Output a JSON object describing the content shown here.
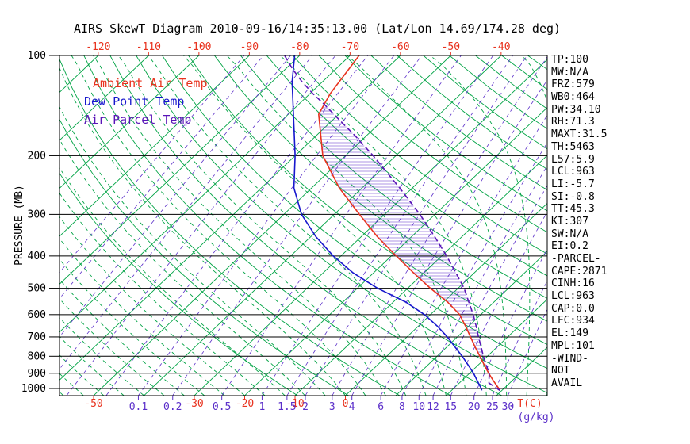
{
  "colors": {
    "red": "#e8321e",
    "green": "#00a344",
    "blue": "#1717cd",
    "violet": "#5b2fc9",
    "parcel": "#5a16b8",
    "black": "#000000"
  },
  "legend": {
    "items": [
      {
        "label": "Ambient Air Temp",
        "color_key": "red"
      },
      {
        "label": "Dew Point Temp",
        "color_key": "blue"
      },
      {
        "label": "Air Parcel Temp",
        "color_key": "parcel"
      }
    ]
  },
  "stats_panel": {
    "lines": [
      "TP:100",
      "MW:N/A",
      "FRZ:579",
      "WB0:464",
      "PW:34.10",
      "RH:71.3",
      "MAXT:31.5",
      "TH:5463",
      "L57:5.9",
      "LCL:963",
      "LI:-5.7",
      "SI:-0.8",
      "TT:45.3",
      "KI:307",
      "SW:N/A",
      "EI:0.2",
      "-PARCEL-",
      "CAPE:2871",
      "CINH:16",
      "LCL:963",
      "CAP:0.0",
      "LFC:934",
      "EL:149",
      "MPL:101",
      "-WIND-",
      "NOT",
      "AVAIL"
    ]
  },
  "chart_data": {
    "type": "skewt-log-p",
    "title": "AIRS SkewT Diagram 2010-09-16/14:35:13.00 (Lat/Lon 14.69/174.28 deg)",
    "x_axis": {
      "unit_label": "T(C)",
      "top_tick_labels_c": [
        -120,
        -110,
        -100,
        -90,
        -80,
        -70,
        -60,
        -50,
        -40
      ],
      "bottom_tick_labels_c": [
        -50,
        -30,
        -20,
        -10,
        0
      ]
    },
    "y_axis": {
      "label": "PRESSURE (MB)",
      "scale": "log",
      "tick_labels_mb": [
        100,
        200,
        300,
        400,
        500,
        600,
        700,
        800,
        900,
        1000
      ],
      "range_mb": [
        100,
        1050
      ]
    },
    "mixing_ratio_axis": {
      "unit_label": "(g/kg)",
      "labels_gkg": [
        0.1,
        0.2,
        0.5,
        1,
        1.5,
        2,
        3,
        4,
        6,
        8,
        10,
        12,
        15,
        20,
        25,
        30
      ]
    },
    "grid": {
      "isotherms_c": {
        "min": -120,
        "max": 40,
        "step": 10
      },
      "dry_adiabats_theta_k": {
        "min": 260,
        "max": 460,
        "step": 10
      },
      "moist_adiabats_start_c_at_1050mb": {
        "min": -64,
        "max": 40,
        "step": 4
      },
      "extra_mixing_ratio_lines_gkg": [
        0.001,
        0.002,
        0.005,
        0.01,
        0.02,
        0.05
      ]
    },
    "series": [
      {
        "name": "Ambient Air Temp",
        "style": "solid",
        "color_key": "red",
        "points_mb_c": [
          [
            1013,
            29.6
          ],
          [
            1000,
            29.0
          ],
          [
            950,
            26.4
          ],
          [
            900,
            23.8
          ],
          [
            850,
            21.2
          ],
          [
            800,
            18.5
          ],
          [
            750,
            15.6
          ],
          [
            700,
            12.6
          ],
          [
            650,
            9.4
          ],
          [
            600,
            5.8
          ],
          [
            550,
            0.8
          ],
          [
            500,
            -5.5
          ],
          [
            450,
            -12.0
          ],
          [
            400,
            -19.0
          ],
          [
            350,
            -26.8
          ],
          [
            300,
            -35.0
          ],
          [
            250,
            -44.5
          ],
          [
            200,
            -54.5
          ],
          [
            150,
            -64.0
          ],
          [
            130,
            -66.0
          ],
          [
            100,
            -68.2
          ]
        ]
      },
      {
        "name": "Dew Point Temp",
        "style": "solid",
        "color_key": "blue",
        "points_mb_c": [
          [
            1013,
            26.0
          ],
          [
            1000,
            25.5
          ],
          [
            950,
            23.2
          ],
          [
            900,
            20.8
          ],
          [
            850,
            18.0
          ],
          [
            800,
            15.0
          ],
          [
            750,
            11.6
          ],
          [
            700,
            8.0
          ],
          [
            650,
            3.8
          ],
          [
            600,
            -1.2
          ],
          [
            550,
            -7.5
          ],
          [
            500,
            -16.0
          ],
          [
            450,
            -24.0
          ],
          [
            400,
            -31.5
          ],
          [
            350,
            -39.0
          ],
          [
            300,
            -46.5
          ],
          [
            250,
            -53.5
          ],
          [
            200,
            -60.0
          ],
          [
            150,
            -69.0
          ],
          [
            120,
            -76.0
          ],
          [
            100,
            -81.0
          ]
        ]
      },
      {
        "name": "Air Parcel Temp",
        "style": "dashed",
        "color_key": "parcel",
        "points_mb_c": [
          [
            1013,
            29.6
          ],
          [
            963,
            25.9
          ],
          [
            900,
            23.9
          ],
          [
            850,
            21.6
          ],
          [
            800,
            19.2
          ],
          [
            750,
            16.8
          ],
          [
            700,
            14.2
          ],
          [
            650,
            11.5
          ],
          [
            600,
            8.5
          ],
          [
            550,
            5.0
          ],
          [
            500,
            1.2
          ],
          [
            450,
            -3.6
          ],
          [
            400,
            -9.0
          ],
          [
            350,
            -15.4
          ],
          [
            300,
            -23.0
          ],
          [
            250,
            -32.5
          ],
          [
            200,
            -44.5
          ],
          [
            175,
            -52.0
          ],
          [
            150,
            -61.0
          ],
          [
            140,
            -65.0
          ],
          [
            130,
            -69.5
          ],
          [
            120,
            -74.0
          ],
          [
            110,
            -78.5
          ],
          [
            100,
            -83.0
          ]
        ]
      }
    ],
    "cape_hatch_between_mb": [
      140,
      934
    ]
  }
}
